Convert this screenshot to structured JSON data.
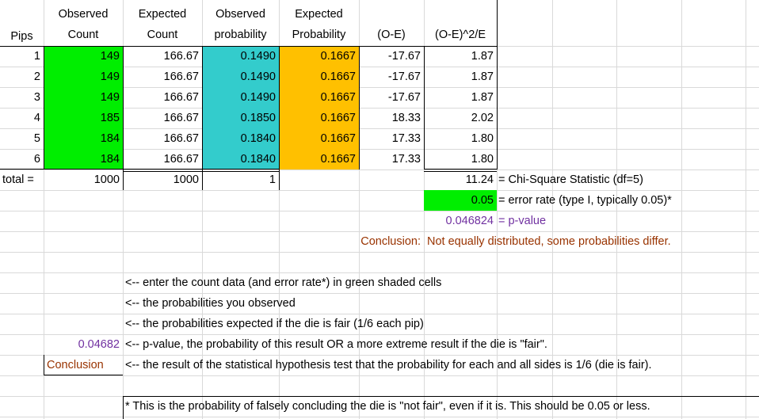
{
  "headers": {
    "pips": "Pips",
    "obs_count_1": "Observed",
    "obs_count_2": "Count",
    "exp_count_1": "Expected",
    "exp_count_2": "Count",
    "obs_prob_1": "Observed",
    "obs_prob_2": "probability",
    "exp_prob_1": "Expected",
    "exp_prob_2": "Probability",
    "o_minus_e": "(O-E)",
    "chi_term": "(O-E)^2/E"
  },
  "rows": [
    {
      "pip": "1",
      "observed": "149",
      "expected": "166.67",
      "obs_prob": "0.1490",
      "exp_prob": "0.1667",
      "diff": "-17.67",
      "chi": "1.87"
    },
    {
      "pip": "2",
      "observed": "149",
      "expected": "166.67",
      "obs_prob": "0.1490",
      "exp_prob": "0.1667",
      "diff": "-17.67",
      "chi": "1.87"
    },
    {
      "pip": "3",
      "observed": "149",
      "expected": "166.67",
      "obs_prob": "0.1490",
      "exp_prob": "0.1667",
      "diff": "-17.67",
      "chi": "1.87"
    },
    {
      "pip": "4",
      "observed": "185",
      "expected": "166.67",
      "obs_prob": "0.1850",
      "exp_prob": "0.1667",
      "diff": "18.33",
      "chi": "2.02"
    },
    {
      "pip": "5",
      "observed": "184",
      "expected": "166.67",
      "obs_prob": "0.1840",
      "exp_prob": "0.1667",
      "diff": "17.33",
      "chi": "1.80"
    },
    {
      "pip": "6",
      "observed": "184",
      "expected": "166.67",
      "obs_prob": "0.1840",
      "exp_prob": "0.1667",
      "diff": "17.33",
      "chi": "1.80"
    }
  ],
  "totals": {
    "label": "total =",
    "observed": "1000",
    "expected": "1000",
    "obs_prob": "1"
  },
  "stats": {
    "chi_value": "11.24",
    "chi_label": "= Chi-Square Statistic (df=5)",
    "error_value": "0.05",
    "error_label": "= error rate (type I, typically 0.05)*",
    "p_value": "0.046824",
    "p_label": "= p-value",
    "conclusion_label": "Conclusion:",
    "conclusion_text": "Not equally distributed, some probabilities differ."
  },
  "legend": {
    "green": "<-- enter the count data (and error rate*) in green shaded cells",
    "cyan": "<-- the probabilities you observed",
    "gold": "<-- the probabilities expected if the die is fair (1/6 each pip)",
    "p_sample": "0.04682",
    "p_text": "<-- p-value, the probability of this result OR a more extreme result if the die is \"fair\".",
    "conclusion_sample": "Conclusion",
    "conclusion_text": "<-- the result of the statistical hypothesis test that the probability for each and all sides is 1/6 (die is fair)."
  },
  "footnote": "* This is the probability of falsely concluding the die is \"not fair\", even if it is. This should be 0.05 or less.",
  "colors": {
    "green": "#00ee00",
    "cyan": "#33cccc",
    "gold": "#ffc000",
    "purple": "#7030a0",
    "brown": "#993300"
  }
}
